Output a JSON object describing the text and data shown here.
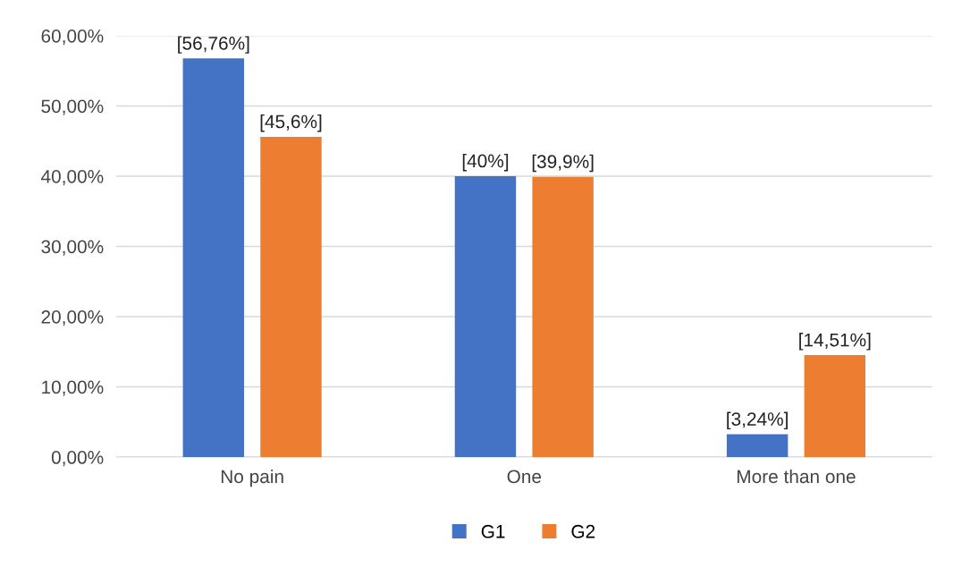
{
  "chart_data": {
    "type": "bar",
    "categories": [
      "No pain",
      "One",
      "More than one"
    ],
    "series": [
      {
        "name": "G1",
        "color": "#4472c4",
        "values": [
          56.76,
          40,
          3.24
        ],
        "value_labels": [
          "[56,76%]",
          "[40%]",
          "[3,24%]"
        ]
      },
      {
        "name": "G2",
        "color": "#ed7d31",
        "values": [
          45.6,
          39.9,
          14.51
        ],
        "value_labels": [
          "[45,6%]",
          "[39,9%]",
          "[14,51%]"
        ]
      }
    ],
    "ylim": [
      0,
      60
    ],
    "yticks": [
      {
        "value": 0,
        "label": "0,00%"
      },
      {
        "value": 10,
        "label": "10,00%"
      },
      {
        "value": 20,
        "label": "20,00%"
      },
      {
        "value": 30,
        "label": "30,00%"
      },
      {
        "value": 40,
        "label": "40,00%"
      },
      {
        "value": 50,
        "label": "50,00%"
      },
      {
        "value": 60,
        "label": "60,00%"
      }
    ],
    "grid": "y",
    "legend": "bottom"
  }
}
